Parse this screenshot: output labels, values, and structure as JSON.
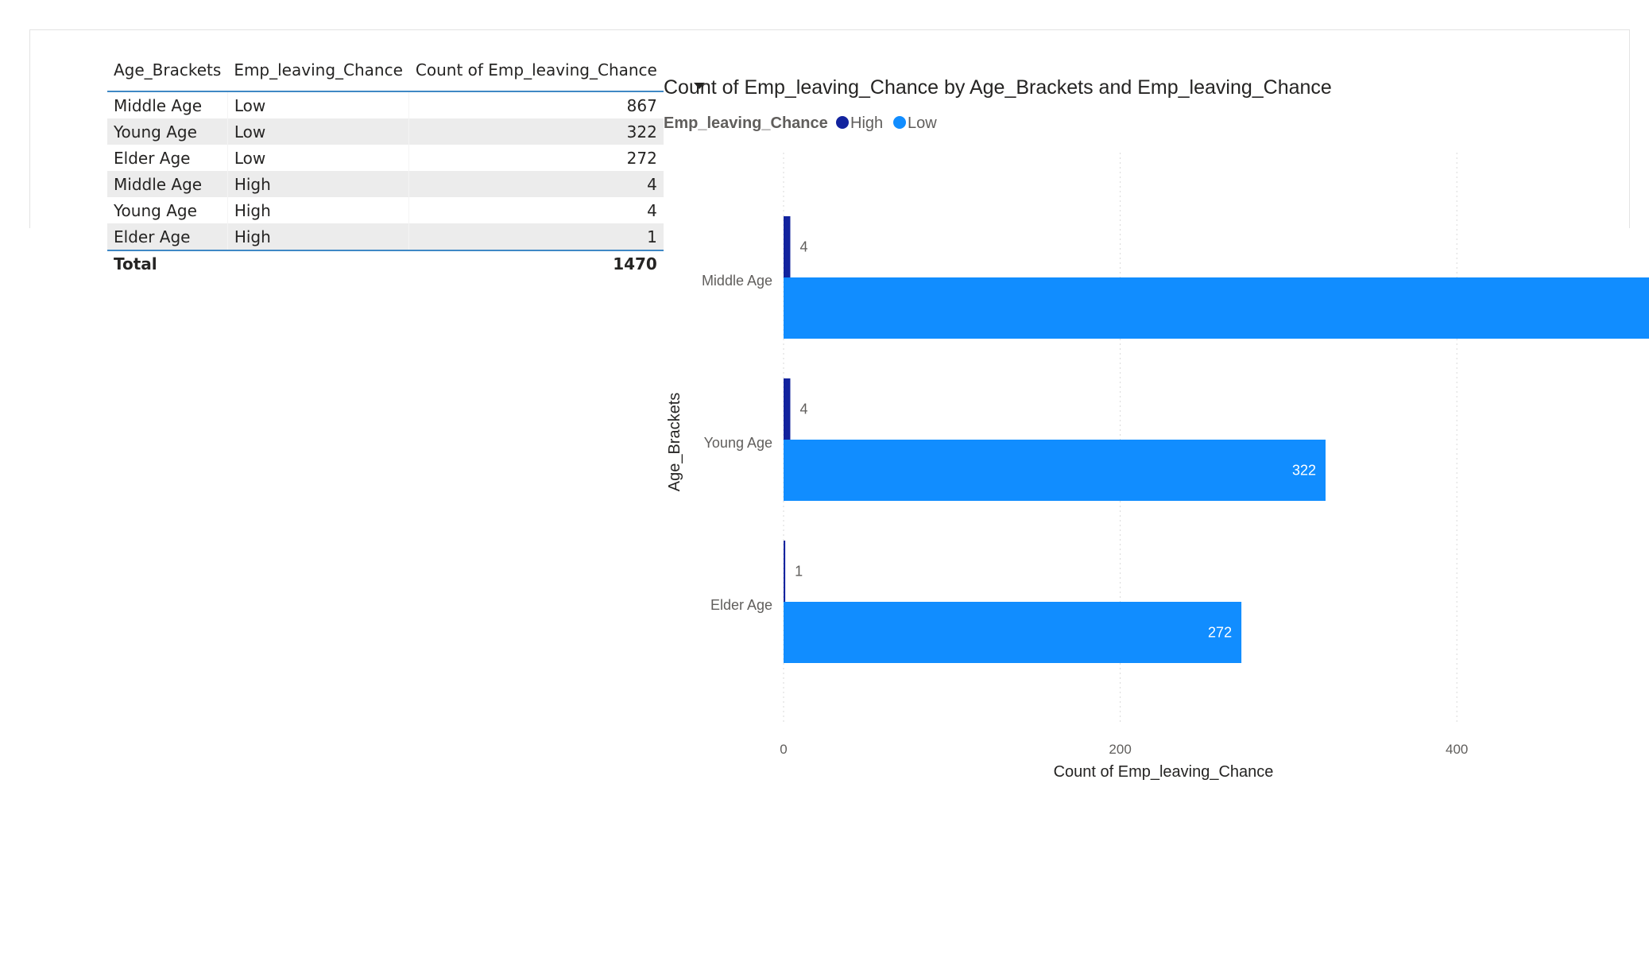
{
  "table": {
    "headers": [
      "Age_Brackets",
      "Emp_leaving_Chance",
      "Count of Emp_leaving_Chance"
    ],
    "rows": [
      [
        "Middle Age",
        "Low",
        "867"
      ],
      [
        "Young Age",
        "Low",
        "322"
      ],
      [
        "Elder Age",
        "Low",
        "272"
      ],
      [
        "Middle Age",
        "High",
        "4"
      ],
      [
        "Young Age",
        "High",
        "4"
      ],
      [
        "Elder Age",
        "High",
        "1"
      ]
    ],
    "total_label": "Total",
    "total_value": "1470"
  },
  "chart_data": {
    "type": "bar",
    "orientation": "horizontal",
    "title": "Count of Emp_leaving_Chance by Age_Brackets and Emp_leaving_Chance",
    "legend_title": "Emp_leaving_Chance",
    "legend_position": "top-left",
    "categories": [
      "Middle Age",
      "Young Age",
      "Elder Age"
    ],
    "series": [
      {
        "name": "High",
        "color": "#12239e",
        "values": [
          4,
          4,
          1
        ]
      },
      {
        "name": "Low",
        "color": "#118dff",
        "values": [
          867,
          322,
          272
        ]
      }
    ],
    "xlabel": "Count of Emp_leaving_Chance",
    "ylabel": "Age_Brackets",
    "xlim": [
      0,
      900
    ],
    "xticks": [
      0,
      200,
      400,
      600,
      800
    ],
    "grid": true
  }
}
